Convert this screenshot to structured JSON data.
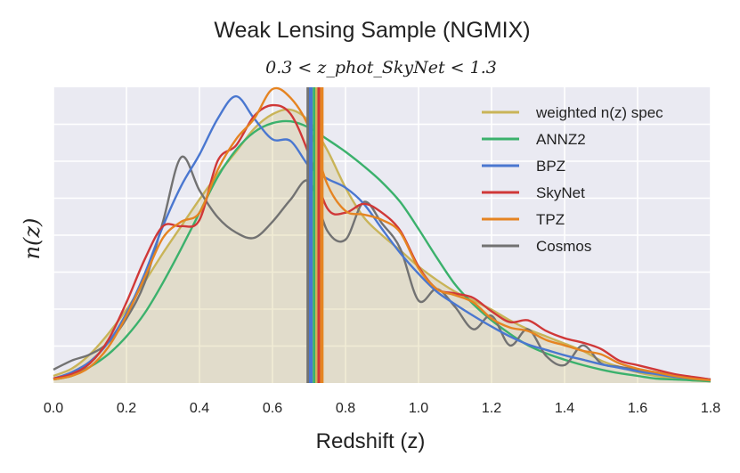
{
  "chart_data": {
    "type": "line",
    "title": "Weak Lensing Sample (NGMIX)",
    "subtitle": "0.3 < z_phot_SkyNet < 1.3",
    "xlabel": "Redshift (z)",
    "ylabel": "n(z)",
    "xlim": [
      0.0,
      1.8
    ],
    "ylim": [
      0.0,
      3.3
    ],
    "x_ticks": [
      "0.0",
      "0.2",
      "0.4",
      "0.6",
      "0.8",
      "1.0",
      "1.2",
      "1.4",
      "1.6",
      "1.8"
    ],
    "grid": true,
    "legend_position": "top-right",
    "filled_series": "weighted n(z) spec",
    "x": [
      0.0,
      0.05,
      0.1,
      0.15,
      0.2,
      0.25,
      0.3,
      0.35,
      0.4,
      0.45,
      0.5,
      0.55,
      0.6,
      0.65,
      0.7,
      0.75,
      0.8,
      0.85,
      0.9,
      0.95,
      1.0,
      1.05,
      1.1,
      1.15,
      1.2,
      1.25,
      1.3,
      1.35,
      1.4,
      1.45,
      1.5,
      1.55,
      1.6,
      1.65,
      1.7,
      1.75,
      1.8
    ],
    "series": [
      {
        "name": "weighted n(z) spec",
        "color": "#c9b458",
        "values": [
          0.08,
          0.16,
          0.32,
          0.55,
          0.82,
          1.13,
          1.45,
          1.75,
          2.05,
          2.33,
          2.58,
          2.84,
          3.0,
          3.05,
          2.92,
          2.6,
          2.18,
          1.85,
          1.65,
          1.48,
          1.3,
          1.15,
          1.02,
          0.92,
          0.82,
          0.7,
          0.6,
          0.52,
          0.44,
          0.36,
          0.25,
          0.18,
          0.12,
          0.08,
          0.05,
          0.03,
          0.02
        ]
      },
      {
        "name": "ANNZ2",
        "color": "#3bb16c",
        "values": [
          0.04,
          0.08,
          0.18,
          0.32,
          0.52,
          0.78,
          1.12,
          1.5,
          1.9,
          2.3,
          2.6,
          2.8,
          2.9,
          2.92,
          2.85,
          2.72,
          2.58,
          2.42,
          2.24,
          2.02,
          1.72,
          1.4,
          1.1,
          0.88,
          0.7,
          0.55,
          0.42,
          0.33,
          0.26,
          0.2,
          0.15,
          0.11,
          0.08,
          0.05,
          0.04,
          0.03,
          0.02
        ]
      },
      {
        "name": "BPZ",
        "color": "#4a77d0",
        "values": [
          0.05,
          0.12,
          0.24,
          0.45,
          0.78,
          1.22,
          1.75,
          2.2,
          2.55,
          2.95,
          3.2,
          2.95,
          2.72,
          2.7,
          2.42,
          2.28,
          2.18,
          2.0,
          1.72,
          1.45,
          1.22,
          1.02,
          0.88,
          0.75,
          0.63,
          0.52,
          0.43,
          0.37,
          0.31,
          0.26,
          0.21,
          0.17,
          0.13,
          0.1,
          0.07,
          0.05,
          0.03
        ]
      },
      {
        "name": "SkyNet",
        "color": "#d03838",
        "values": [
          0.05,
          0.1,
          0.22,
          0.48,
          0.9,
          1.38,
          1.75,
          1.75,
          1.82,
          2.48,
          2.65,
          2.98,
          3.1,
          3.0,
          2.55,
          1.95,
          1.9,
          2.0,
          1.9,
          1.7,
          1.3,
          1.05,
          1.0,
          0.95,
          0.8,
          0.68,
          0.7,
          0.58,
          0.5,
          0.45,
          0.38,
          0.25,
          0.2,
          0.15,
          0.1,
          0.07,
          0.04
        ]
      },
      {
        "name": "TPZ",
        "color": "#e58422",
        "values": [
          0.04,
          0.08,
          0.18,
          0.4,
          0.75,
          1.18,
          1.62,
          1.8,
          1.9,
          2.38,
          2.72,
          2.95,
          3.28,
          3.18,
          2.85,
          2.22,
          1.92,
          1.88,
          1.82,
          1.68,
          1.28,
          1.05,
          0.98,
          0.9,
          0.72,
          0.62,
          0.58,
          0.48,
          0.42,
          0.36,
          0.32,
          0.22,
          0.16,
          0.12,
          0.08,
          0.05,
          0.03
        ]
      },
      {
        "name": "Cosmos",
        "color": "#727272",
        "values": [
          0.15,
          0.25,
          0.32,
          0.45,
          0.72,
          1.12,
          1.8,
          2.52,
          2.15,
          1.85,
          1.68,
          1.62,
          1.8,
          2.05,
          2.25,
          1.7,
          1.6,
          2.02,
          1.78,
          1.5,
          0.92,
          1.05,
          0.85,
          0.6,
          0.75,
          0.42,
          0.6,
          0.3,
          0.2,
          0.42,
          0.22,
          0.18,
          0.15,
          0.12,
          0.08,
          0.06,
          0.04
        ]
      }
    ],
    "vertical_lines": [
      {
        "series": "Cosmos",
        "x": 0.698,
        "color": "#727272"
      },
      {
        "series": "BPZ",
        "x": 0.705,
        "color": "#4a77d0"
      },
      {
        "series": "ANNZ2",
        "x": 0.715,
        "color": "#3bb16c"
      },
      {
        "series": "weighted n(z) spec",
        "x": 0.722,
        "color": "#c9b458"
      },
      {
        "series": "SkyNet",
        "x": 0.728,
        "color": "#d03838"
      },
      {
        "series": "TPZ",
        "x": 0.735,
        "color": "#e58422"
      }
    ]
  }
}
